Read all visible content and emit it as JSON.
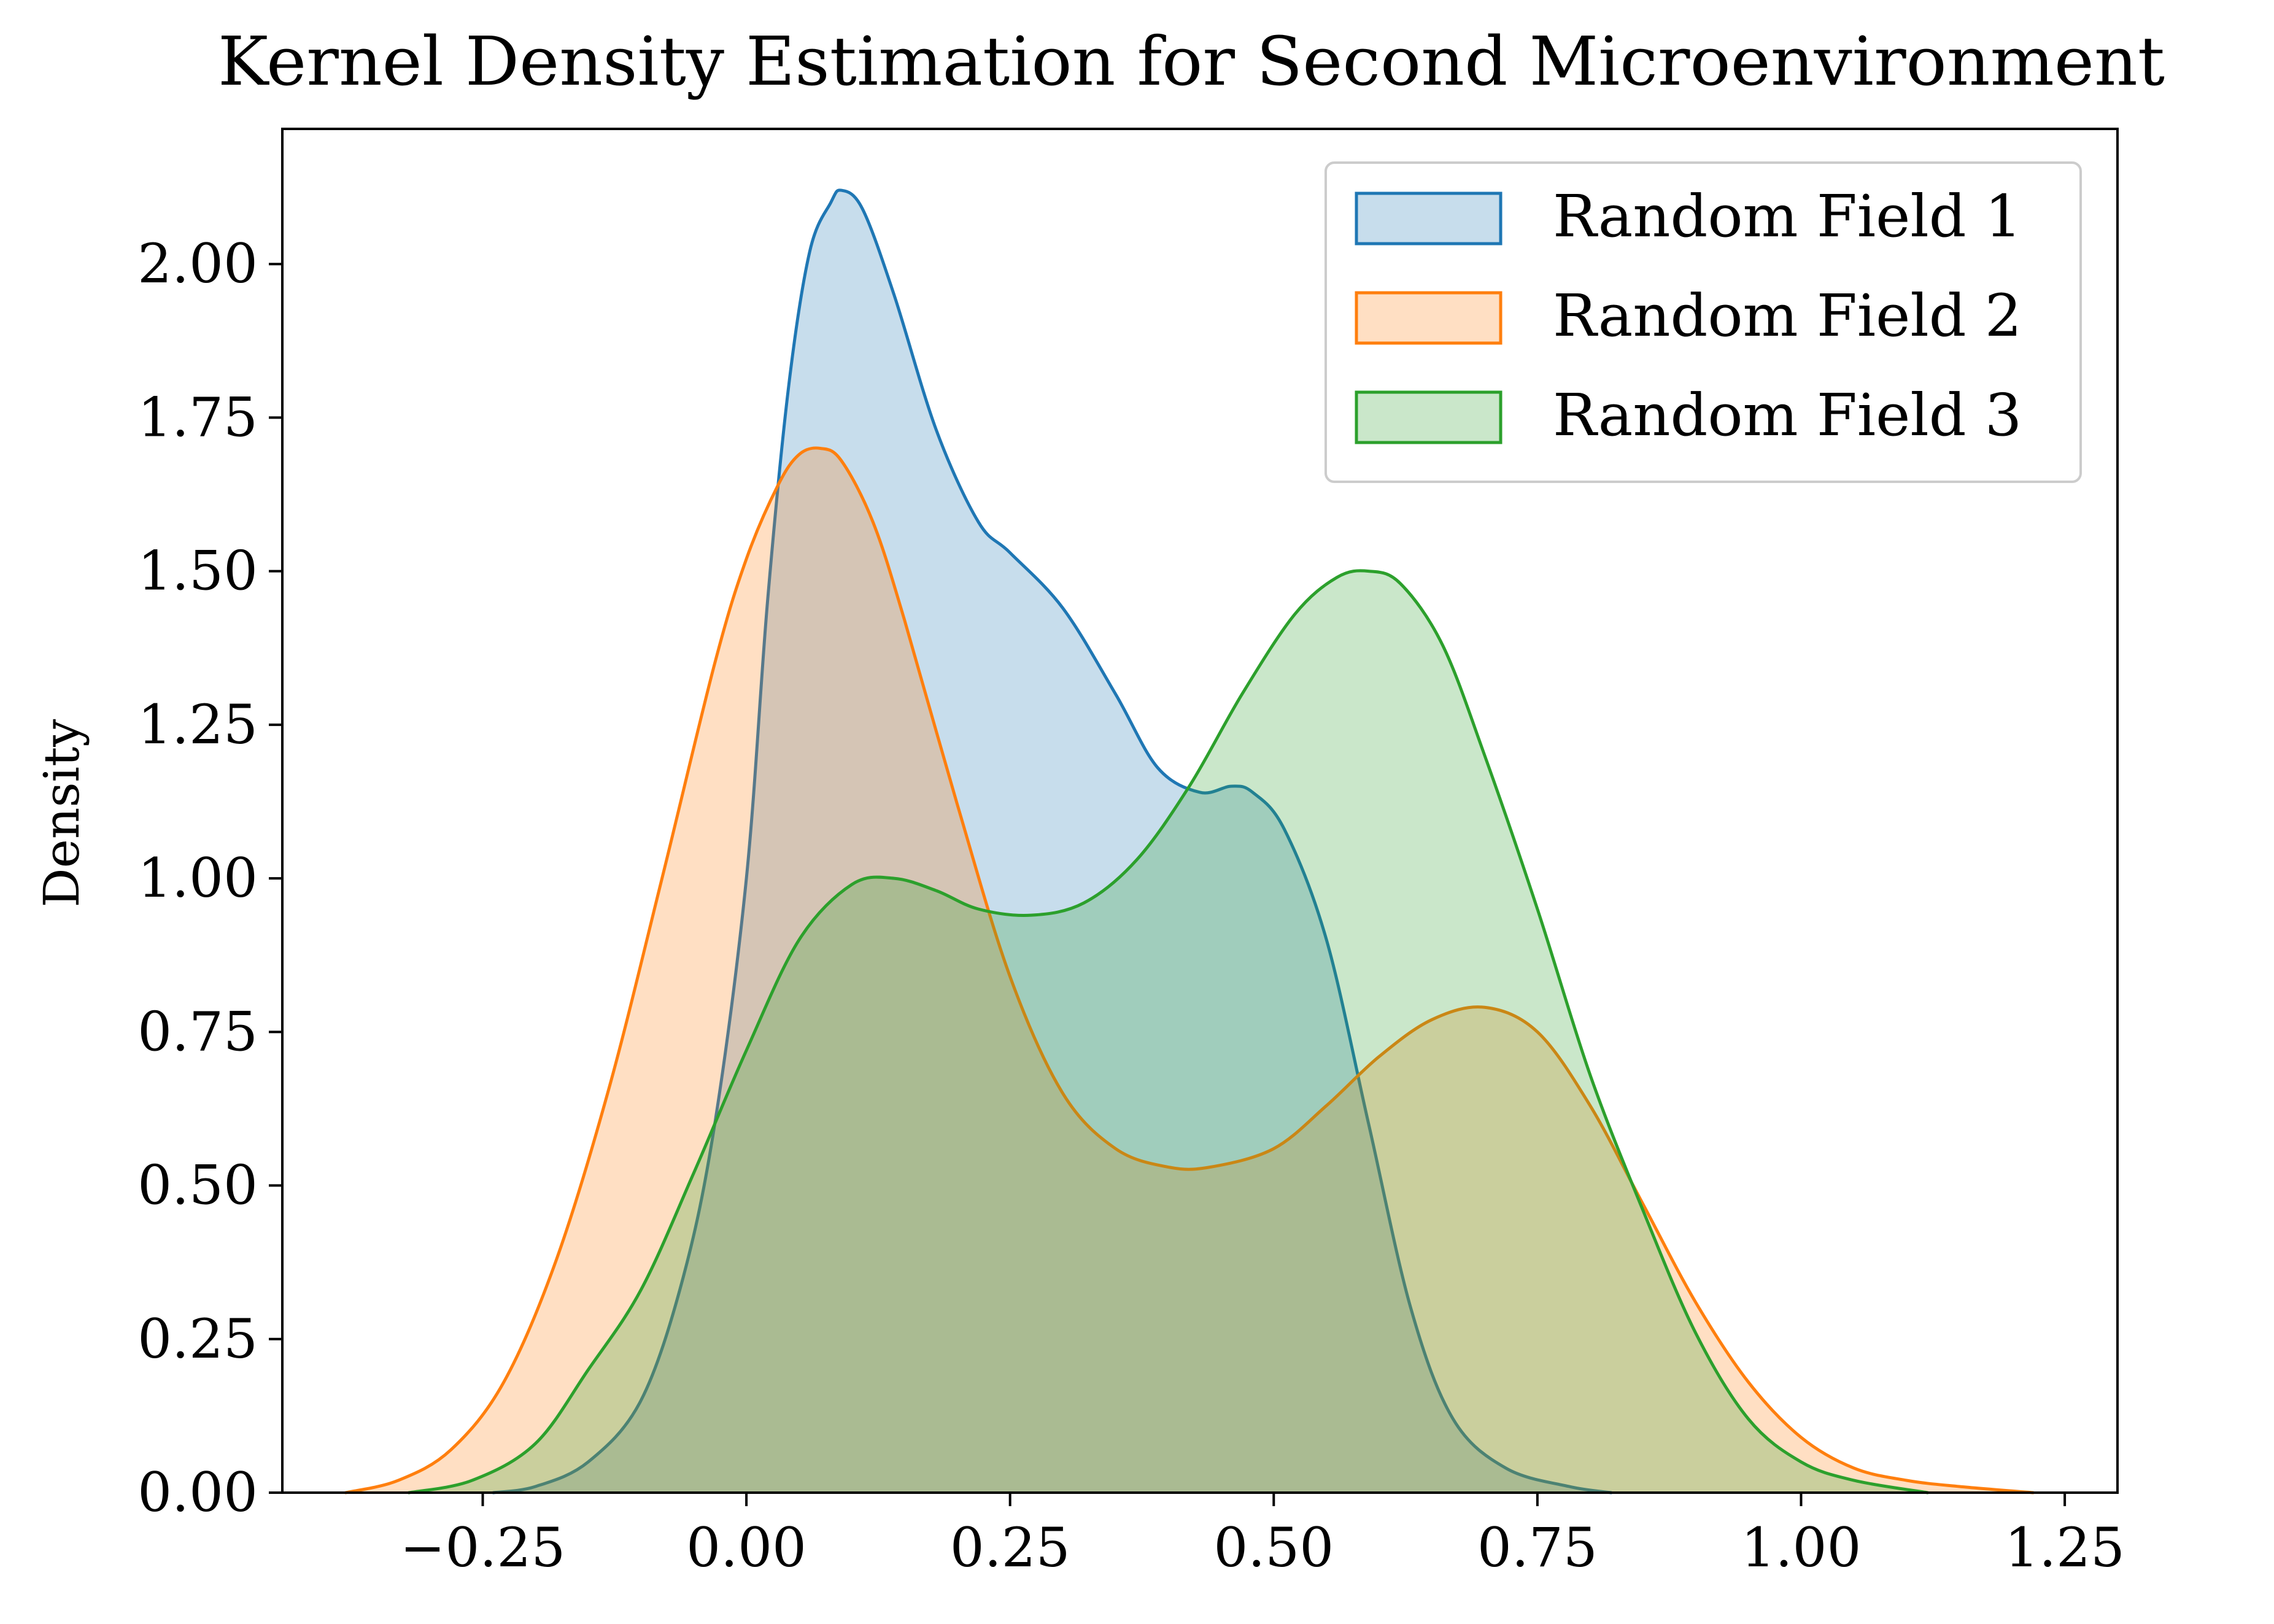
{
  "chart_data": {
    "type": "area",
    "title": "Kernel Density Estimation for Second Microenvironment",
    "xlabel": "",
    "ylabel": "Density",
    "xlim": [
      -0.44,
      1.3
    ],
    "ylim": [
      0,
      2.22
    ],
    "x_ticks": [
      -0.25,
      0.0,
      0.25,
      0.5,
      0.75,
      1.0,
      1.25
    ],
    "x_tick_labels": [
      "−0.25",
      "0.00",
      "0.25",
      "0.50",
      "0.75",
      "1.00",
      "1.25"
    ],
    "y_ticks": [
      0.0,
      0.25,
      0.5,
      0.75,
      1.0,
      1.25,
      1.5,
      1.75,
      2.0
    ],
    "y_tick_labels": [
      "0.00",
      "0.25",
      "0.50",
      "0.75",
      "1.00",
      "1.25",
      "1.50",
      "1.75",
      "2.00"
    ],
    "grid": false,
    "legend_position": "top-right",
    "fill_opacity": 0.25,
    "series": [
      {
        "name": "Random Field 1",
        "color": "#1f77b4",
        "points": [
          [
            -0.24,
            0.0
          ],
          [
            -0.2,
            0.01
          ],
          [
            -0.15,
            0.05
          ],
          [
            -0.1,
            0.15
          ],
          [
            -0.06,
            0.35
          ],
          [
            -0.03,
            0.6
          ],
          [
            0.0,
            1.0
          ],
          [
            0.02,
            1.45
          ],
          [
            0.04,
            1.8
          ],
          [
            0.06,
            2.02
          ],
          [
            0.08,
            2.1
          ],
          [
            0.09,
            2.12
          ],
          [
            0.11,
            2.09
          ],
          [
            0.14,
            1.95
          ],
          [
            0.18,
            1.73
          ],
          [
            0.22,
            1.58
          ],
          [
            0.25,
            1.53
          ],
          [
            0.3,
            1.44
          ],
          [
            0.35,
            1.3
          ],
          [
            0.39,
            1.18
          ],
          [
            0.43,
            1.14
          ],
          [
            0.46,
            1.15
          ],
          [
            0.48,
            1.14
          ],
          [
            0.51,
            1.08
          ],
          [
            0.55,
            0.9
          ],
          [
            0.59,
            0.6
          ],
          [
            0.63,
            0.3
          ],
          [
            0.67,
            0.12
          ],
          [
            0.72,
            0.04
          ],
          [
            0.78,
            0.01
          ],
          [
            0.82,
            0.0
          ]
        ]
      },
      {
        "name": "Random Field 2",
        "color": "#ff7f0e",
        "points": [
          [
            -0.38,
            0.0
          ],
          [
            -0.33,
            0.02
          ],
          [
            -0.28,
            0.07
          ],
          [
            -0.23,
            0.18
          ],
          [
            -0.18,
            0.38
          ],
          [
            -0.13,
            0.66
          ],
          [
            -0.08,
            1.0
          ],
          [
            -0.03,
            1.35
          ],
          [
            0.0,
            1.52
          ],
          [
            0.03,
            1.64
          ],
          [
            0.05,
            1.69
          ],
          [
            0.07,
            1.7
          ],
          [
            0.09,
            1.68
          ],
          [
            0.12,
            1.58
          ],
          [
            0.15,
            1.42
          ],
          [
            0.2,
            1.12
          ],
          [
            0.25,
            0.84
          ],
          [
            0.3,
            0.65
          ],
          [
            0.35,
            0.56
          ],
          [
            0.4,
            0.53
          ],
          [
            0.44,
            0.53
          ],
          [
            0.5,
            0.56
          ],
          [
            0.55,
            0.63
          ],
          [
            0.6,
            0.71
          ],
          [
            0.65,
            0.77
          ],
          [
            0.7,
            0.79
          ],
          [
            0.75,
            0.75
          ],
          [
            0.8,
            0.63
          ],
          [
            0.85,
            0.47
          ],
          [
            0.9,
            0.31
          ],
          [
            0.95,
            0.18
          ],
          [
            1.0,
            0.09
          ],
          [
            1.05,
            0.04
          ],
          [
            1.1,
            0.02
          ],
          [
            1.15,
            0.01
          ],
          [
            1.22,
            0.0
          ]
        ]
      },
      {
        "name": "Random Field 3",
        "color": "#2ca02c",
        "points": [
          [
            -0.32,
            0.0
          ],
          [
            -0.26,
            0.02
          ],
          [
            -0.2,
            0.08
          ],
          [
            -0.15,
            0.2
          ],
          [
            -0.1,
            0.33
          ],
          [
            -0.05,
            0.52
          ],
          [
            0.0,
            0.72
          ],
          [
            0.05,
            0.9
          ],
          [
            0.1,
            0.99
          ],
          [
            0.14,
            1.0
          ],
          [
            0.18,
            0.98
          ],
          [
            0.22,
            0.95
          ],
          [
            0.27,
            0.94
          ],
          [
            0.32,
            0.96
          ],
          [
            0.37,
            1.03
          ],
          [
            0.42,
            1.15
          ],
          [
            0.47,
            1.3
          ],
          [
            0.52,
            1.43
          ],
          [
            0.56,
            1.49
          ],
          [
            0.59,
            1.5
          ],
          [
            0.62,
            1.48
          ],
          [
            0.66,
            1.38
          ],
          [
            0.7,
            1.2
          ],
          [
            0.75,
            0.95
          ],
          [
            0.8,
            0.68
          ],
          [
            0.85,
            0.46
          ],
          [
            0.9,
            0.26
          ],
          [
            0.95,
            0.12
          ],
          [
            1.0,
            0.05
          ],
          [
            1.05,
            0.02
          ],
          [
            1.12,
            0.0
          ]
        ]
      }
    ]
  }
}
